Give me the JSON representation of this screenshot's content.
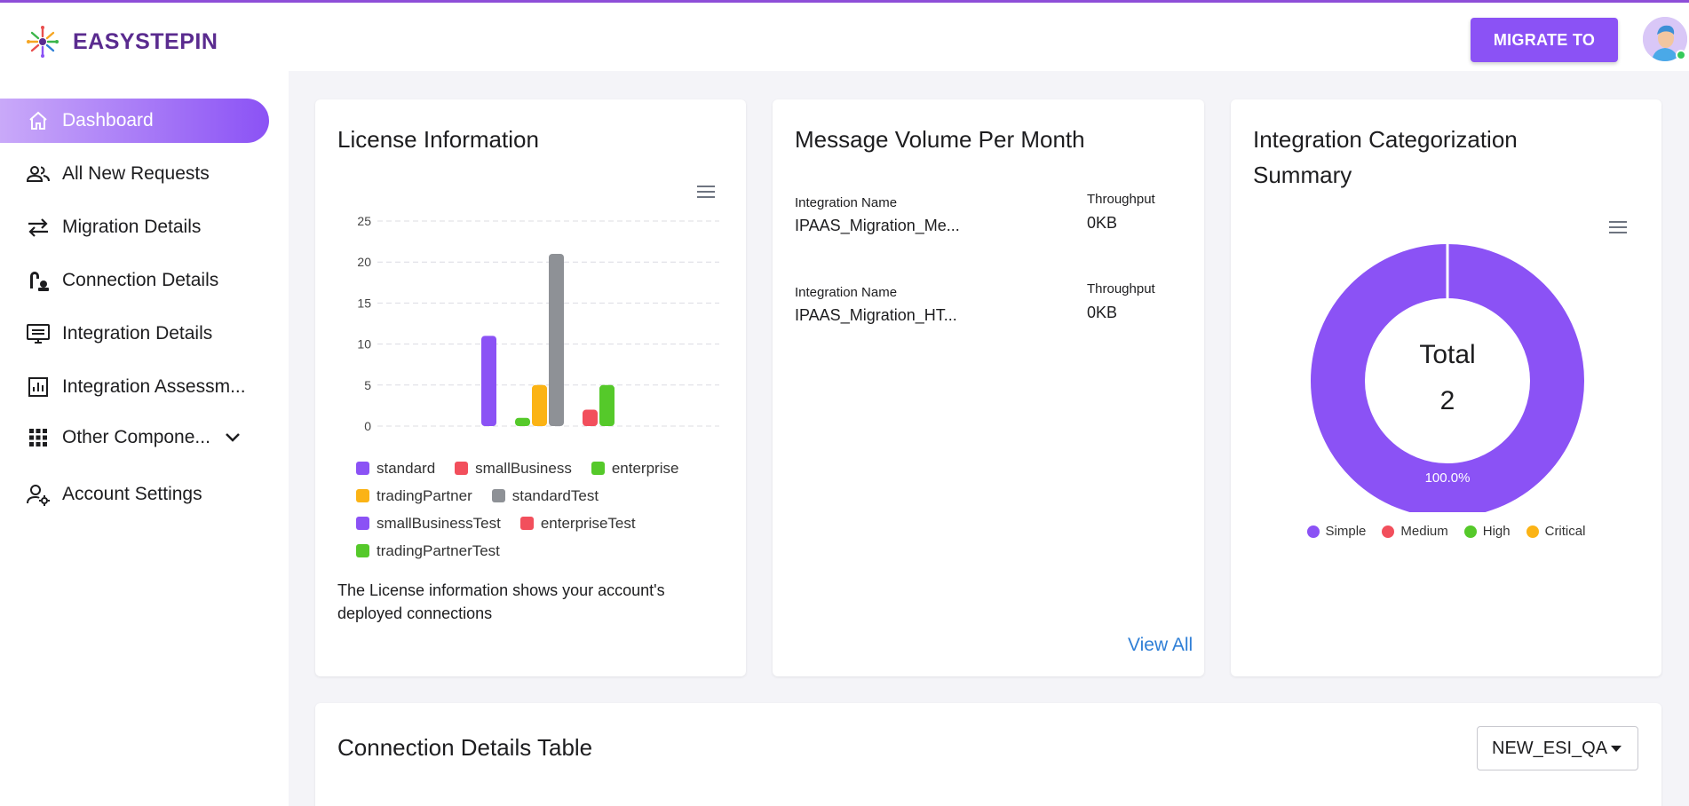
{
  "app": {
    "brand": "EASYSTEPIN",
    "migrate_button": "MIGRATE TO"
  },
  "sidebar": {
    "items": [
      {
        "label": "Dashboard",
        "icon": "home-icon",
        "active": true
      },
      {
        "label": "All New Requests",
        "icon": "users-icon"
      },
      {
        "label": "Migration Details",
        "icon": "swap-arrows-icon"
      },
      {
        "label": "Connection Details",
        "icon": "connection-icon"
      },
      {
        "label": "Integration Details",
        "icon": "monitor-icon"
      },
      {
        "label": "Integration Assessm...",
        "icon": "bar-chart-icon"
      },
      {
        "label": "Other Compone...",
        "icon": "grid-icon",
        "expandable": true
      },
      {
        "label": "Account Settings",
        "icon": "user-gear-icon"
      }
    ]
  },
  "license": {
    "title": "License Information",
    "description": "The License information shows your account's deployed connections",
    "legend": [
      {
        "name": "standard",
        "color": "#8b52f5"
      },
      {
        "name": "smallBusiness",
        "color": "#f24f5c"
      },
      {
        "name": "enterprise",
        "color": "#55c92a"
      },
      {
        "name": "tradingPartner",
        "color": "#fbb315"
      },
      {
        "name": "standardTest",
        "color": "#8e9196"
      },
      {
        "name": "smallBusinessTest",
        "color": "#8b52f5"
      },
      {
        "name": "enterpriseTest",
        "color": "#f24f5c"
      },
      {
        "name": "tradingPartnerTest",
        "color": "#55c92a"
      }
    ]
  },
  "chart_data": [
    {
      "type": "bar",
      "title": "License Information",
      "ylim": [
        0,
        25
      ],
      "yticks": [
        0,
        5,
        10,
        15,
        20,
        25
      ],
      "grid": true,
      "legend_position": "bottom",
      "series": [
        {
          "name": "standard",
          "values": [
            11
          ],
          "color": "#8b52f5"
        },
        {
          "name": "smallBusiness",
          "values": [
            0
          ],
          "color": "#f24f5c"
        },
        {
          "name": "enterprise",
          "values": [
            1
          ],
          "color": "#55c92a"
        },
        {
          "name": "tradingPartner",
          "values": [
            5
          ],
          "color": "#fbb315"
        },
        {
          "name": "standardTest",
          "values": [
            21
          ],
          "color": "#8e9196"
        },
        {
          "name": "smallBusinessTest",
          "values": [
            0
          ],
          "color": "#8b52f5"
        },
        {
          "name": "enterpriseTest",
          "values": [
            2
          ],
          "color": "#f24f5c"
        },
        {
          "name": "tradingPartnerTest",
          "values": [
            5
          ],
          "color": "#55c92a"
        }
      ]
    },
    {
      "type": "pie",
      "title": "Integration Categorization Summary",
      "center_label": "Total",
      "center_value": "2",
      "slices": [
        {
          "name": "Simple",
          "value": 2,
          "percent_label": "100.0%",
          "color": "#8b52f5"
        },
        {
          "name": "Medium",
          "value": 0,
          "color": "#f24f5c"
        },
        {
          "name": "High",
          "value": 0,
          "color": "#55c92a"
        },
        {
          "name": "Critical",
          "value": 0,
          "color": "#fbb315"
        }
      ],
      "legend_position": "bottom"
    }
  ],
  "message_volume": {
    "title": "Message Volume Per Month",
    "name_label": "Integration Name",
    "throughput_label": "Throughput",
    "rows": [
      {
        "name": "IPAAS_Migration_Me...",
        "throughput": "0KB"
      },
      {
        "name": "IPAAS_Migration_HT...",
        "throughput": "0KB"
      }
    ],
    "view_all": "View All"
  },
  "categorization": {
    "title_line1": "Integration Categorization",
    "title_line2": "Summary"
  },
  "connection_table": {
    "title": "Connection Details Table",
    "selected_env": "NEW_ESI_QA"
  }
}
